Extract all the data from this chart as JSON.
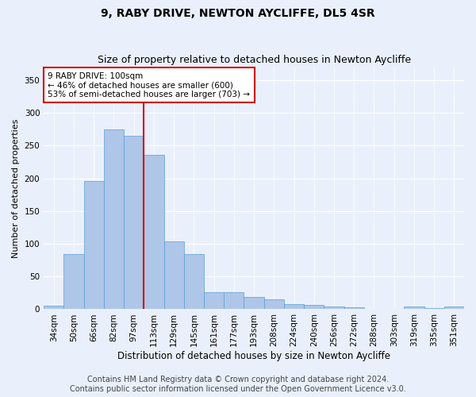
{
  "title1": "9, RABY DRIVE, NEWTON AYCLIFFE, DL5 4SR",
  "title2": "Size of property relative to detached houses in Newton Aycliffe",
  "xlabel": "Distribution of detached houses by size in Newton Aycliffe",
  "ylabel": "Number of detached properties",
  "categories": [
    "34sqm",
    "50sqm",
    "66sqm",
    "82sqm",
    "97sqm",
    "113sqm",
    "129sqm",
    "145sqm",
    "161sqm",
    "177sqm",
    "193sqm",
    "208sqm",
    "224sqm",
    "240sqm",
    "256sqm",
    "272sqm",
    "288sqm",
    "303sqm",
    "319sqm",
    "335sqm",
    "351sqm"
  ],
  "values": [
    6,
    84,
    196,
    275,
    265,
    236,
    104,
    84,
    26,
    26,
    19,
    15,
    8,
    7,
    4,
    3,
    1,
    1,
    4,
    2,
    4
  ],
  "bar_color": "#aec6e8",
  "bar_edge_color": "#5a9fd4",
  "vline_x": 4.5,
  "vline_color": "#cc0000",
  "annotation_text": "9 RABY DRIVE: 100sqm\n← 46% of detached houses are smaller (600)\n53% of semi-detached houses are larger (703) →",
  "annotation_box_color": "#ffffff",
  "annotation_box_edge": "#cc0000",
  "ylim": [
    0,
    370
  ],
  "yticks": [
    0,
    50,
    100,
    150,
    200,
    250,
    300,
    350
  ],
  "bg_color": "#eaf0fb",
  "axes_bg": "#eaf0fb",
  "grid_color": "#ffffff",
  "footer_text": "Contains HM Land Registry data © Crown copyright and database right 2024.\nContains public sector information licensed under the Open Government Licence v3.0.",
  "title1_fontsize": 10,
  "title2_fontsize": 9,
  "xlabel_fontsize": 8.5,
  "ylabel_fontsize": 8,
  "footer_fontsize": 7,
  "tick_fontsize": 7.5,
  "annot_fontsize": 7.5
}
